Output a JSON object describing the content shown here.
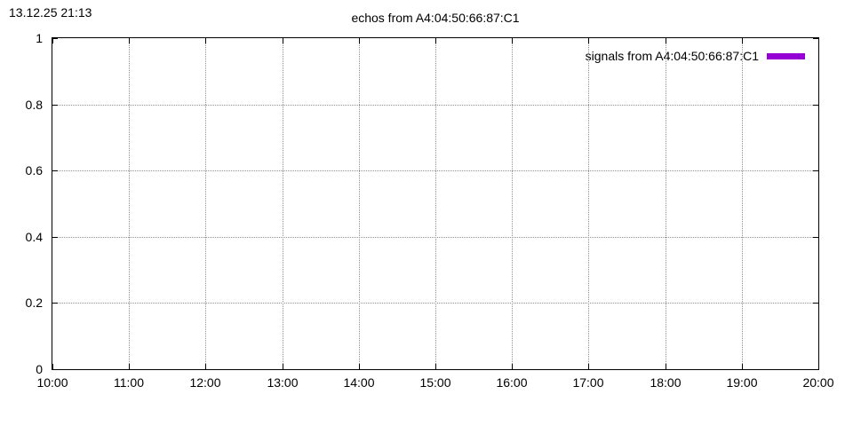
{
  "header": {
    "timestamp": "13.12.25 21:13"
  },
  "chart_data": {
    "type": "line",
    "title": "echos from A4:04:50:66:87:C1",
    "xlabel": "",
    "ylabel": "",
    "x_tick_labels": [
      "10:00",
      "11:00",
      "12:00",
      "13:00",
      "14:00",
      "15:00",
      "16:00",
      "17:00",
      "18:00",
      "19:00",
      "20:00"
    ],
    "y_tick_labels": [
      "0",
      "0.2",
      "0.4",
      "0.6",
      "0.8",
      "1"
    ],
    "xlim": [
      "10:00",
      "20:00"
    ],
    "ylim": [
      0,
      1
    ],
    "grid": "dotted",
    "legend_position": "top-right-inside",
    "series": [
      {
        "name": "signals from A4:04:50:66:87:C1",
        "color": "#9400d3",
        "style": "line",
        "points": []
      }
    ]
  },
  "colors": {
    "background": "#ffffff",
    "border": "#000000",
    "grid": "#909090",
    "accent": "#9400d3"
  }
}
